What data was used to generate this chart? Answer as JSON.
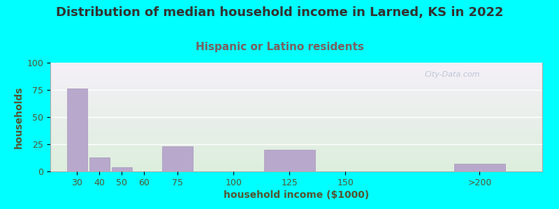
{
  "title": "Distribution of median household income in Larned, KS in 2022",
  "subtitle": "Hispanic or Latino residents",
  "xlabel": "household income ($1000)",
  "ylabel": "households",
  "background_color": "#00FFFF",
  "plot_bg_bottom_left": "#ddeedd",
  "plot_bg_top_right": "#f5f0f8",
  "bar_color": "#b8a8cc",
  "bar_edge_color": "#a898bc",
  "title_color": "#333333",
  "subtitle_color": "#7a6060",
  "axis_label_color": "#555533",
  "tick_label_color": "#555533",
  "values": [
    76,
    13,
    4,
    0,
    23,
    0,
    20,
    0,
    7
  ],
  "bar_positions": [
    30,
    40,
    50,
    60,
    75,
    100,
    125,
    150,
    210
  ],
  "bar_widths": [
    10,
    10,
    10,
    10,
    15,
    25,
    25,
    25,
    25
  ],
  "xlim": [
    18,
    238
  ],
  "ylim": [
    0,
    100
  ],
  "yticks": [
    0,
    25,
    50,
    75,
    100
  ],
  "xtick_positions": [
    30,
    40,
    50,
    60,
    75,
    100,
    125,
    150,
    210
  ],
  "xtick_labels": [
    "30",
    "40",
    "50",
    "60",
    "75",
    "100",
    "125",
    "150",
    ">200"
  ],
  "watermark": "City-Data.com",
  "title_fontsize": 13,
  "subtitle_fontsize": 11,
  "label_fontsize": 10,
  "tick_fontsize": 9
}
